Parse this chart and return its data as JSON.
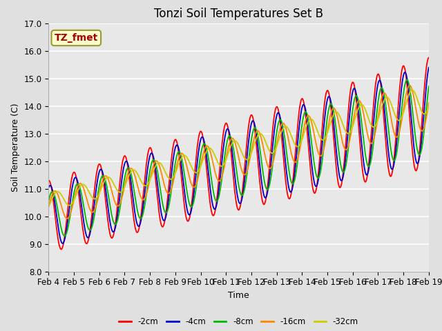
{
  "title": "Tonzi Soil Temperatures Set B",
  "xlabel": "Time",
  "ylabel": "Soil Temperature (C)",
  "ylim": [
    8.0,
    17.0
  ],
  "yticks": [
    8.0,
    9.0,
    10.0,
    11.0,
    12.0,
    13.0,
    14.0,
    15.0,
    16.0,
    17.0
  ],
  "background_color": "#e0e0e0",
  "plot_bg_color": "#e8e8e8",
  "annotation_text": "TZ_fmet",
  "annotation_color": "#aa0000",
  "annotation_bg": "#ffffcc",
  "annotation_border": "#999933",
  "colors": {
    "-2cm": "#ff0000",
    "-4cm": "#0000cc",
    "-8cm": "#00bb00",
    "-16cm": "#ff8800",
    "-32cm": "#cccc00"
  },
  "linewidth": 1.3,
  "x_tick_labels": [
    "Feb 4",
    "Feb 5",
    "Feb 6",
    "Feb 7",
    "Feb 8",
    "Feb 9",
    "Feb 10",
    "Feb 11",
    "Feb 12",
    "Feb 13",
    "Feb 14",
    "Feb 15",
    "Feb 16",
    "Feb 17",
    "Feb 18",
    "Feb 19"
  ],
  "num_points": 720,
  "title_fontsize": 12,
  "label_fontsize": 9,
  "tick_fontsize": 8.5
}
